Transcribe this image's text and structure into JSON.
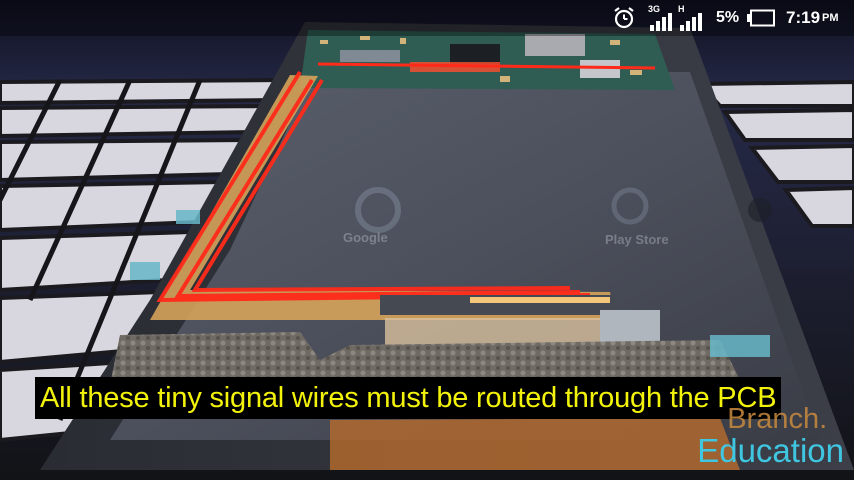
{
  "status_bar": {
    "network_labels": [
      "3G",
      "H"
    ],
    "battery_percent": "5%",
    "time": "7:19",
    "ampm": "PM",
    "icons": [
      "alarm-clock-icon",
      "signal-3g-icon",
      "signal-h-icon",
      "battery-low-icon"
    ]
  },
  "video": {
    "subtitle": "All these tiny signal wires must be routed through the PCB",
    "watermark_line1": "Branch.",
    "watermark_line2": "Education",
    "screen_labels": [
      "Google",
      "Play Store"
    ]
  }
}
